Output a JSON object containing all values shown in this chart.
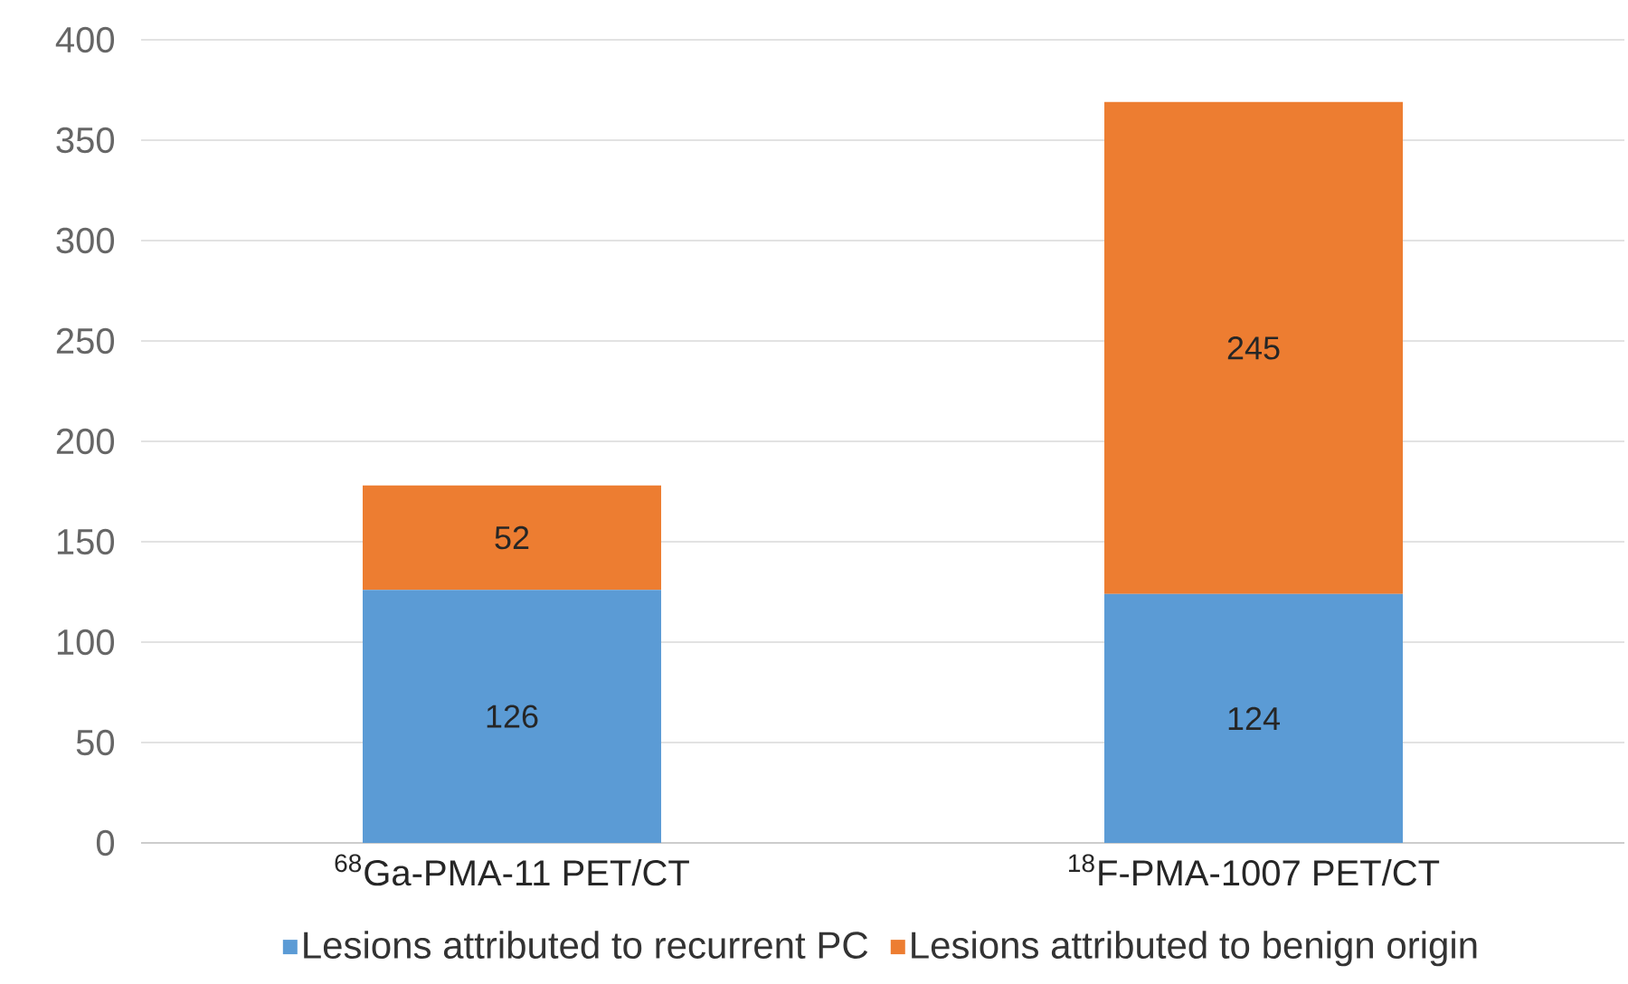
{
  "chart_data": {
    "type": "bar",
    "stacked": true,
    "categories": [
      "$^{68}$Ga-PMA-11 PET/CT",
      "$^{18}$F-PMA-1007 PET/CT"
    ],
    "series": [
      {
        "name": "Lesions attributed to recurrent PC",
        "color": "#5b9bd5",
        "values": [
          126,
          124
        ]
      },
      {
        "name": "Lesions attributed to benign origin",
        "color": "#ed7d31",
        "values": [
          52,
          245
        ]
      }
    ],
    "ylim": [
      0,
      400
    ],
    "yticks": [
      0,
      50,
      100,
      150,
      200,
      250,
      300,
      350,
      400
    ],
    "grid": "y",
    "legend": "bottom",
    "data_labels": true
  }
}
